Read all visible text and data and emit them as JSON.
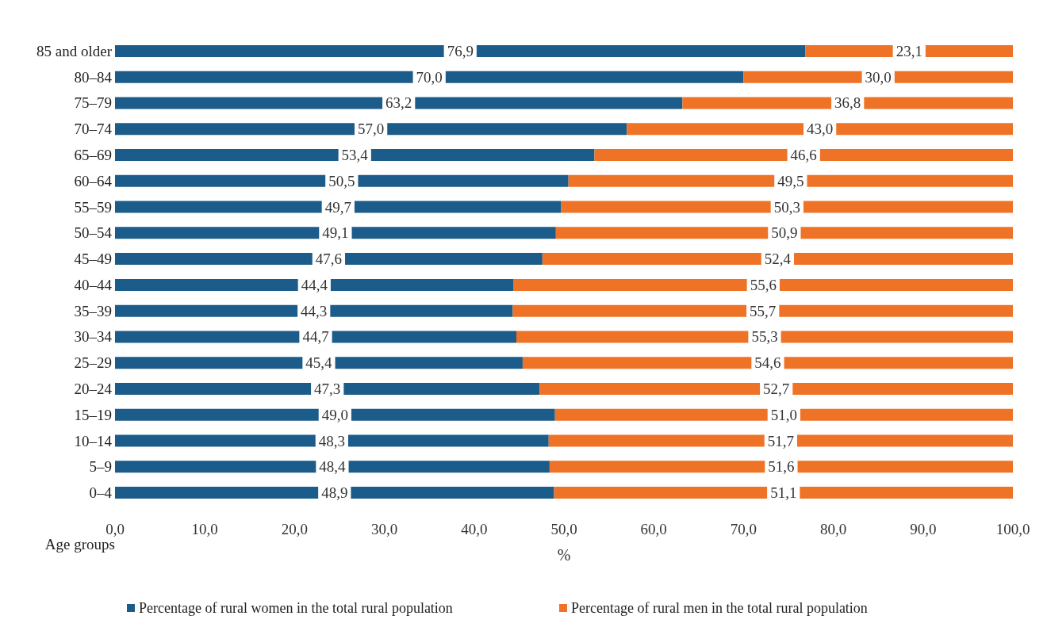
{
  "chart_data": {
    "type": "bar",
    "orientation": "horizontal",
    "stacked": true,
    "ylabel": "Age groups",
    "xlabel": "%",
    "categories": [
      "85 and older",
      "80–84",
      "75–79",
      "70–74",
      "65–69",
      "60–64",
      "55–59",
      "50–54",
      "45–49",
      "40–44",
      "35–39",
      "30–34",
      "25–29",
      "20–24",
      "15–19",
      "10–14",
      "5–9",
      "0–4"
    ],
    "series": [
      {
        "name": "Percentage of rural women in the total rural population",
        "color": "#1c5c8a",
        "values": [
          76.9,
          70.0,
          63.2,
          57.0,
          53.4,
          50.5,
          49.7,
          49.1,
          47.6,
          44.4,
          44.3,
          44.7,
          45.4,
          47.3,
          49.0,
          48.3,
          48.4,
          48.9
        ],
        "value_labels": [
          "76,9",
          "70,0",
          "63,2",
          "57,0",
          "53,4",
          "50,5",
          "49,7",
          "49,1",
          "47,6",
          "44,4",
          "44,3",
          "44,7",
          "45,4",
          "47,3",
          "49,0",
          "48,3",
          "48,4",
          "48,9"
        ]
      },
      {
        "name": "Percentage of rural men in the total rural population",
        "color": "#ef7326",
        "values": [
          23.1,
          30.0,
          36.8,
          43.0,
          46.6,
          49.5,
          50.3,
          50.9,
          52.4,
          55.6,
          55.7,
          55.3,
          54.6,
          52.7,
          51.0,
          51.7,
          51.6,
          51.1
        ],
        "value_labels": [
          "23,1",
          "30,0",
          "36,8",
          "43,0",
          "46,6",
          "49,5",
          "50,3",
          "50,9",
          "52,4",
          "55,6",
          "55,7",
          "55,3",
          "54,6",
          "52,7",
          "51,0",
          "51,7",
          "51,6",
          "51,1"
        ]
      }
    ],
    "xlim": [
      0,
      100
    ],
    "xticks": [
      {
        "value": 0,
        "label": "0,0"
      },
      {
        "value": 10,
        "label": "10,0"
      },
      {
        "value": 20,
        "label": "20,0"
      },
      {
        "value": 30,
        "label": "30,0"
      },
      {
        "value": 40,
        "label": "40,0"
      },
      {
        "value": 50,
        "label": "50,0"
      },
      {
        "value": 60,
        "label": "60,0"
      },
      {
        "value": 70,
        "label": "70,0"
      },
      {
        "value": 80,
        "label": "80,0"
      },
      {
        "value": 90,
        "label": "90,0"
      },
      {
        "value": 100,
        "label": "100,0"
      }
    ],
    "grid": false,
    "legend": "bottom"
  }
}
